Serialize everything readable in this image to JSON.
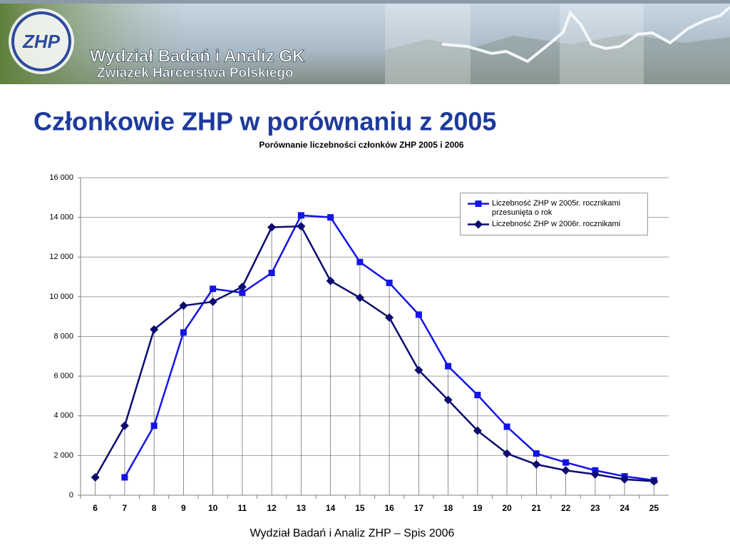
{
  "header": {
    "logo": "ZHP",
    "line1": "Wydział Badań i Analiz GK",
    "line2": "Związek Harcerstwa Polskiego"
  },
  "slide_title": "Członkowie ZHP w porównaniu z 2005",
  "footer": "Wydział Badań i Analiz ZHP – Spis 2006",
  "chart_data": {
    "type": "line",
    "title": "Porównanie liczebności członków ZHP 2005 i 2006",
    "categories": [
      6,
      7,
      8,
      9,
      10,
      11,
      12,
      13,
      14,
      15,
      16,
      17,
      18,
      19,
      20,
      21,
      22,
      23,
      24,
      25
    ],
    "series": [
      {
        "name": "Liczebność ZHP w 2005r. rocznikami przesunięta o rok",
        "color": "#1414e6",
        "marker": "square",
        "values": [
          null,
          900,
          3500,
          8200,
          10400,
          10200,
          11200,
          14100,
          14000,
          11750,
          10700,
          9100,
          6500,
          5050,
          3450,
          2100,
          1650,
          1250,
          950,
          750
        ]
      },
      {
        "name": "Liczebność ZHP w 2006r. rocznikami",
        "color": "#0c0c72",
        "marker": "diamond",
        "values": [
          900,
          3500,
          8350,
          9550,
          9750,
          10500,
          13500,
          13550,
          10800,
          9950,
          8950,
          6300,
          4800,
          3250,
          2100,
          1550,
          1250,
          1050,
          800,
          700
        ]
      }
    ],
    "ylim": [
      0,
      16000
    ],
    "yticks": [
      0,
      {
        "value": 2000,
        "label": "2 000"
      },
      {
        "value": 4000,
        "label": "4 000"
      },
      {
        "value": 6000,
        "label": "6 000"
      },
      {
        "value": 8000,
        "label": "8 000"
      },
      {
        "value": 10000,
        "label": "10 000"
      },
      {
        "value": 12000,
        "label": "12 000"
      },
      {
        "value": 14000,
        "label": "14 000"
      },
      {
        "value": 16000,
        "label": "16 000"
      }
    ],
    "grid": true,
    "drop_lines": true,
    "legend": "upper right"
  }
}
